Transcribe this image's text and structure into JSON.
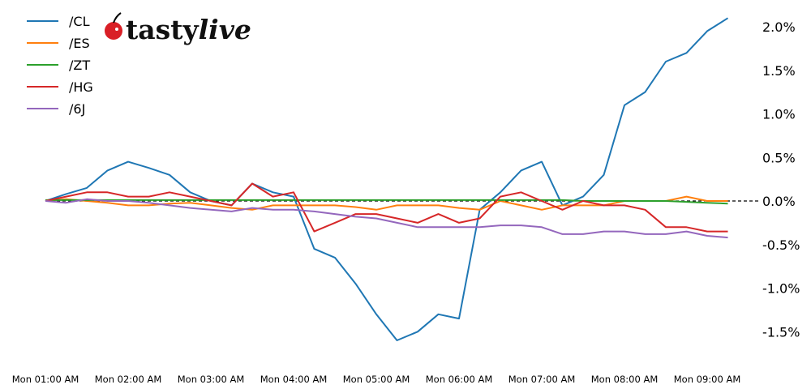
{
  "chart_data": {
    "type": "line",
    "title": "",
    "xlabel": "",
    "ylabel": "",
    "logo": "tastylive",
    "legend_position": "top-left",
    "grid": false,
    "zero_line": "dashed black",
    "ylim": [
      -1.85,
      2.2
    ],
    "y_ticks": [
      "2.0%",
      "1.5%",
      "1.0%",
      "0.5%",
      "0.0%",
      "-0.5%",
      "-1.0%",
      "-1.5%"
    ],
    "y_tick_values": [
      2.0,
      1.5,
      1.0,
      0.5,
      0.0,
      -0.5,
      -1.0,
      -1.5
    ],
    "x_ticks": [
      "Mon 01:00 AM",
      "Mon 02:00 AM",
      "Mon 03:00 AM",
      "Mon 04:00 AM",
      "Mon 05:00 AM",
      "Mon 06:00 AM",
      "Mon 07:00 AM",
      "Mon 08:00 AM",
      "Mon 09:00 AM"
    ],
    "x": [
      "01:00",
      "01:15",
      "01:30",
      "01:45",
      "02:00",
      "02:15",
      "02:30",
      "02:45",
      "03:00",
      "03:15",
      "03:30",
      "03:45",
      "04:00",
      "04:15",
      "04:30",
      "04:45",
      "05:00",
      "05:15",
      "05:30",
      "05:45",
      "06:00",
      "06:15",
      "06:30",
      "06:45",
      "07:00",
      "07:15",
      "07:30",
      "07:45",
      "08:00",
      "08:15",
      "08:30",
      "08:45",
      "09:00",
      "09:15"
    ],
    "series": [
      {
        "name": "/CL",
        "color": "#1f77b4",
        "values": [
          0.0,
          0.08,
          0.15,
          0.35,
          0.45,
          0.38,
          0.3,
          0.1,
          0.0,
          -0.05,
          0.2,
          0.1,
          0.05,
          -0.55,
          -0.65,
          -0.95,
          -1.3,
          -1.6,
          -1.5,
          -1.3,
          -1.35,
          -0.1,
          0.1,
          0.35,
          0.45,
          -0.05,
          0.05,
          0.3,
          1.1,
          1.25,
          1.6,
          1.7,
          1.95,
          2.1
        ]
      },
      {
        "name": "/ES",
        "color": "#ff7f0e",
        "values": [
          0.0,
          0.02,
          0.0,
          -0.02,
          -0.05,
          -0.05,
          -0.03,
          -0.02,
          -0.05,
          -0.08,
          -0.1,
          -0.05,
          -0.05,
          -0.05,
          -0.05,
          -0.07,
          -0.1,
          -0.05,
          -0.05,
          -0.05,
          -0.08,
          -0.1,
          0.0,
          -0.05,
          -0.1,
          -0.05,
          -0.05,
          -0.05,
          0.0,
          0.0,
          0.0,
          0.05,
          0.0,
          0.0
        ]
      },
      {
        "name": "/ZT",
        "color": "#2ca02c",
        "values": [
          0.01,
          0.01,
          0.01,
          0.01,
          0.01,
          0.01,
          0.01,
          0.01,
          0.01,
          0.01,
          0.01,
          0.01,
          0.01,
          0.01,
          0.01,
          0.01,
          0.01,
          0.01,
          0.01,
          0.01,
          0.01,
          0.01,
          0.01,
          0.01,
          0.01,
          0.01,
          0.0,
          0.0,
          0.0,
          0.0,
          0.0,
          -0.01,
          -0.02,
          -0.03
        ]
      },
      {
        "name": "/HG",
        "color": "#d62728",
        "values": [
          0.0,
          0.05,
          0.1,
          0.1,
          0.05,
          0.05,
          0.1,
          0.05,
          0.0,
          -0.05,
          0.2,
          0.05,
          0.1,
          -0.35,
          -0.25,
          -0.15,
          -0.15,
          -0.2,
          -0.25,
          -0.15,
          -0.25,
          -0.2,
          0.05,
          0.1,
          0.0,
          -0.1,
          0.0,
          -0.05,
          -0.05,
          -0.1,
          -0.3,
          -0.3,
          -0.35,
          -0.35
        ]
      },
      {
        "name": "/6J",
        "color": "#9467bd",
        "values": [
          0.0,
          -0.02,
          0.02,
          0.0,
          0.0,
          -0.02,
          -0.05,
          -0.08,
          -0.1,
          -0.12,
          -0.08,
          -0.1,
          -0.1,
          -0.12,
          -0.15,
          -0.18,
          -0.2,
          -0.25,
          -0.3,
          -0.3,
          -0.3,
          -0.3,
          -0.28,
          -0.28,
          -0.3,
          -0.38,
          -0.38,
          -0.35,
          -0.35,
          -0.38,
          -0.38,
          -0.35,
          -0.4,
          -0.42
        ]
      }
    ]
  }
}
